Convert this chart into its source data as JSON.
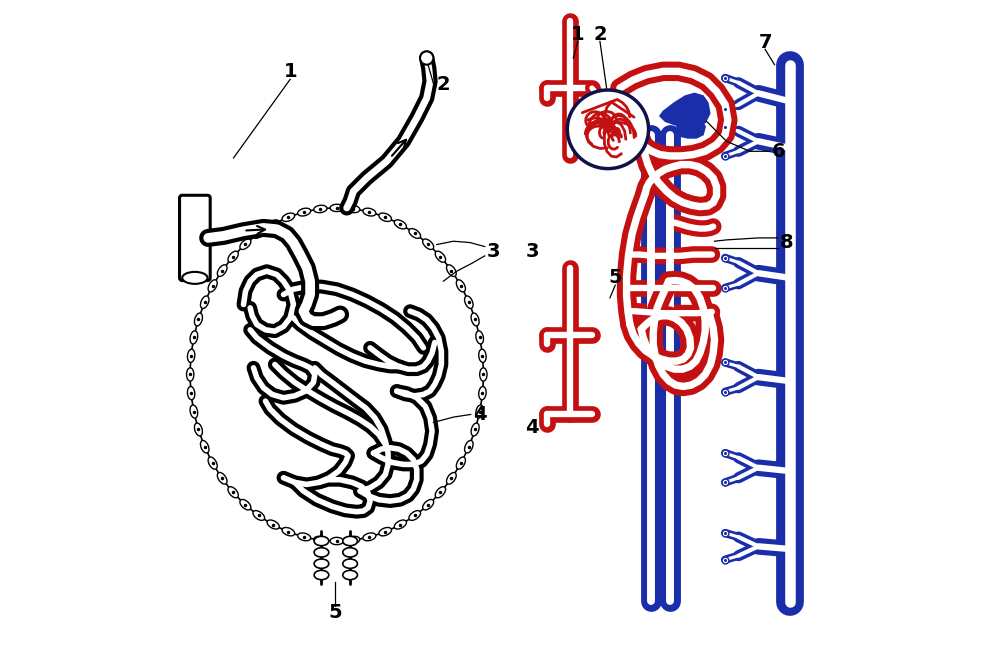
{
  "background_color": "#ffffff",
  "fig_width": 10.0,
  "fig_height": 6.69,
  "dpi": 100,
  "colors": {
    "black": "#000000",
    "white": "#ffffff",
    "red": "#C41010",
    "blue": "#1A2EAA",
    "navy": "#10104A"
  }
}
